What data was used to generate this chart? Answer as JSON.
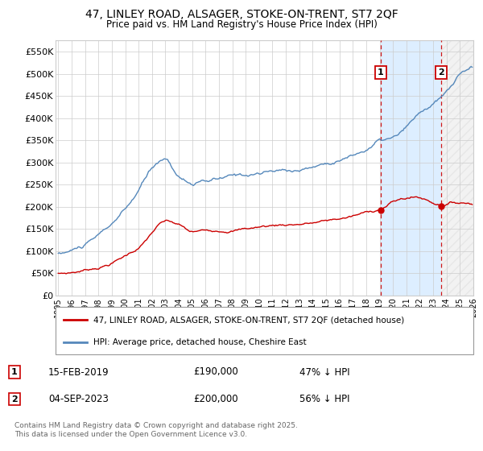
{
  "title_line1": "47, LINLEY ROAD, ALSAGER, STOKE-ON-TRENT, ST7 2QF",
  "title_line2": "Price paid vs. HM Land Registry's House Price Index (HPI)",
  "ylim": [
    0,
    575000
  ],
  "yticks": [
    0,
    50000,
    100000,
    150000,
    200000,
    250000,
    300000,
    350000,
    400000,
    450000,
    500000,
    550000
  ],
  "ytick_labels": [
    "£0",
    "£50K",
    "£100K",
    "£150K",
    "£200K",
    "£250K",
    "£300K",
    "£350K",
    "£400K",
    "£450K",
    "£500K",
    "£550K"
  ],
  "hpi_color": "#5588bb",
  "price_color": "#cc0000",
  "vline_color": "#cc0000",
  "shade_color": "#ddeeff",
  "hatch_color": "#cccccc",
  "transaction1_date": "15-FEB-2019",
  "transaction1_price": "£190,000",
  "transaction1_pct": "47% ↓ HPI",
  "transaction2_date": "04-SEP-2023",
  "transaction2_price": "£200,000",
  "transaction2_pct": "56% ↓ HPI",
  "legend_label1": "47, LINLEY ROAD, ALSAGER, STOKE-ON-TRENT, ST7 2QF (detached house)",
  "legend_label2": "HPI: Average price, detached house, Cheshire East",
  "footer": "Contains HM Land Registry data © Crown copyright and database right 2025.\nThis data is licensed under the Open Government Licence v3.0.",
  "bg_color": "#ffffff",
  "grid_color": "#cccccc",
  "x_start_year": 1995,
  "x_end_year": 2026,
  "idx1": 289,
  "idx2": 343
}
